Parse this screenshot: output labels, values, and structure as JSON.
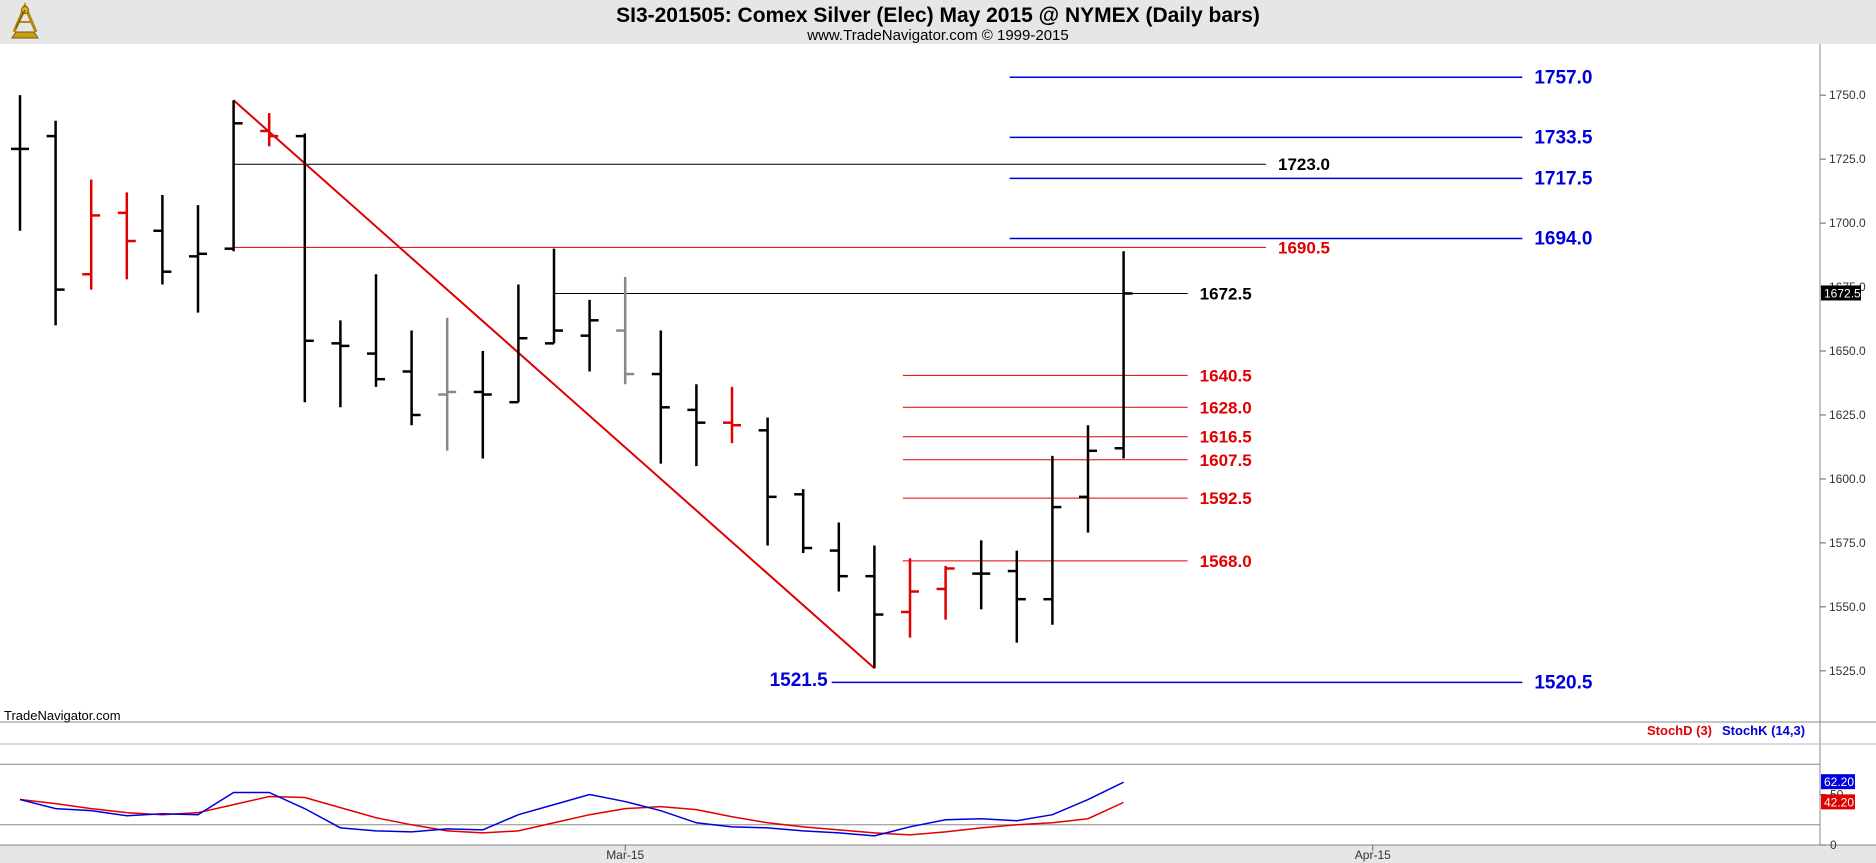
{
  "header": {
    "title": "SI3-201505:  Comex Silver (Elec) May 2015 @ NYMEX  (Daily bars)",
    "subtitle": "www.TradeNavigator.com © 1999-2015",
    "logo_icon": "sextant-logo-icon"
  },
  "watermark": "TradeNavigator.com",
  "chart_data": [
    {
      "type": "ohlc",
      "ylim": [
        1505,
        1770
      ],
      "y_ticks": [
        "1525.0",
        "1550.0",
        "1575.0",
        "1600.0",
        "1625.0",
        "1650.0",
        "1675.0",
        "1700.0",
        "1725.0",
        "1750.0"
      ],
      "x_ticks": [
        {
          "label": "Mar-15",
          "bar": 17
        },
        {
          "label": "Apr-15",
          "bar": 38
        }
      ],
      "last_price": "1672.5",
      "bars": [
        {
          "o": 1729,
          "h": 1750,
          "l": 1697,
          "c": 1729,
          "color": "black"
        },
        {
          "o": 1734,
          "h": 1740,
          "l": 1660,
          "c": 1674,
          "color": "black"
        },
        {
          "o": 1680,
          "h": 1717,
          "l": 1674,
          "c": 1703,
          "color": "red"
        },
        {
          "o": 1704,
          "h": 1712,
          "l": 1678,
          "c": 1693,
          "color": "red"
        },
        {
          "o": 1697,
          "h": 1711,
          "l": 1676,
          "c": 1681,
          "color": "black"
        },
        {
          "o": 1687,
          "h": 1707,
          "l": 1665,
          "c": 1688,
          "color": "black"
        },
        {
          "o": 1690,
          "h": 1748,
          "l": 1689,
          "c": 1739,
          "color": "black"
        },
        {
          "o": 1736,
          "h": 1743,
          "l": 1730,
          "c": 1734,
          "color": "red"
        },
        {
          "o": 1734,
          "h": 1735,
          "l": 1630,
          "c": 1654,
          "color": "black"
        },
        {
          "o": 1653,
          "h": 1662,
          "l": 1628,
          "c": 1652,
          "color": "black"
        },
        {
          "o": 1649,
          "h": 1680,
          "l": 1636,
          "c": 1639,
          "color": "black"
        },
        {
          "o": 1642,
          "h": 1658,
          "l": 1621,
          "c": 1625,
          "color": "black"
        },
        {
          "o": 1633,
          "h": 1663,
          "l": 1611,
          "c": 1634,
          "color": "gray"
        },
        {
          "o": 1634,
          "h": 1650,
          "l": 1608,
          "c": 1633,
          "color": "black"
        },
        {
          "o": 1630,
          "h": 1676,
          "l": 1630,
          "c": 1655,
          "color": "black"
        },
        {
          "o": 1653,
          "h": 1690,
          "l": 1653,
          "c": 1658,
          "color": "black"
        },
        {
          "o": 1656,
          "h": 1670,
          "l": 1642,
          "c": 1662,
          "color": "black"
        },
        {
          "o": 1658,
          "h": 1679,
          "l": 1637,
          "c": 1641,
          "color": "gray"
        },
        {
          "o": 1641,
          "h": 1658,
          "l": 1606,
          "c": 1628,
          "color": "black"
        },
        {
          "o": 1627,
          "h": 1637,
          "l": 1605,
          "c": 1622,
          "color": "black"
        },
        {
          "o": 1622,
          "h": 1636,
          "l": 1614,
          "c": 1621,
          "color": "red"
        },
        {
          "o": 1619,
          "h": 1624,
          "l": 1574,
          "c": 1593,
          "color": "black"
        },
        {
          "o": 1594,
          "h": 1596,
          "l": 1571,
          "c": 1573,
          "color": "black"
        },
        {
          "o": 1572,
          "h": 1583,
          "l": 1556,
          "c": 1562,
          "color": "black"
        },
        {
          "o": 1562,
          "h": 1574,
          "l": 1526,
          "c": 1547,
          "color": "black"
        },
        {
          "o": 1548,
          "h": 1569,
          "l": 1538,
          "c": 1556,
          "color": "red"
        },
        {
          "o": 1557,
          "h": 1566,
          "l": 1545,
          "c": 1565,
          "color": "red"
        },
        {
          "o": 1563,
          "h": 1576,
          "l": 1549,
          "c": 1563,
          "color": "black"
        },
        {
          "o": 1564,
          "h": 1572,
          "l": 1536,
          "c": 1553,
          "color": "black"
        },
        {
          "o": 1553,
          "h": 1609,
          "l": 1543,
          "c": 1589,
          "color": "black"
        },
        {
          "o": 1593,
          "h": 1621,
          "l": 1579,
          "c": 1611,
          "color": "black"
        },
        {
          "o": 1612,
          "h": 1689,
          "l": 1608,
          "c": 1672.5,
          "color": "black"
        }
      ],
      "trendline": {
        "from": {
          "bar": 6,
          "y": 1748
        },
        "to": {
          "bar": 24,
          "y": 1526
        },
        "color": "#e00000"
      },
      "levels": [
        {
          "value": 1757.0,
          "label": "1757.0",
          "color": "#0000dd",
          "from_bar": 27.8,
          "to_bar": 42.2,
          "size": "big"
        },
        {
          "value": 1733.5,
          "label": "1733.5",
          "color": "#0000dd",
          "from_bar": 27.8,
          "to_bar": 42.2,
          "size": "big"
        },
        {
          "value": 1723.0,
          "label": "1723.0",
          "color": "#000000",
          "from_bar": 6.0,
          "to_bar": 35.0,
          "size": "mid"
        },
        {
          "value": 1717.5,
          "label": "1717.5",
          "color": "#0000dd",
          "from_bar": 27.8,
          "to_bar": 42.2,
          "size": "big"
        },
        {
          "value": 1694.0,
          "label": "1694.0",
          "color": "#0000dd",
          "from_bar": 27.8,
          "to_bar": 42.2,
          "size": "big"
        },
        {
          "value": 1690.5,
          "label": "1690.5",
          "color": "#e00000",
          "from_bar": 6.0,
          "to_bar": 35.0,
          "size": "mid"
        },
        {
          "value": 1672.5,
          "label": "1672.5",
          "color": "#000000",
          "from_bar": 15.0,
          "to_bar": 32.8,
          "size": "mid"
        },
        {
          "value": 1640.5,
          "label": "1640.5",
          "color": "#e00000",
          "from_bar": 24.8,
          "to_bar": 32.8,
          "size": "mid"
        },
        {
          "value": 1628.0,
          "label": "1628.0",
          "color": "#e00000",
          "from_bar": 24.8,
          "to_bar": 32.8,
          "size": "mid"
        },
        {
          "value": 1616.5,
          "label": "1616.5",
          "color": "#e00000",
          "from_bar": 24.8,
          "to_bar": 32.8,
          "size": "mid"
        },
        {
          "value": 1607.5,
          "label": "1607.5",
          "color": "#e00000",
          "from_bar": 24.8,
          "to_bar": 32.8,
          "size": "mid"
        },
        {
          "value": 1592.5,
          "label": "1592.5",
          "color": "#e00000",
          "from_bar": 24.8,
          "to_bar": 32.8,
          "size": "mid"
        },
        {
          "value": 1568.0,
          "label": "1568.0",
          "color": "#e00000",
          "from_bar": 24.8,
          "to_bar": 32.8,
          "size": "mid"
        },
        {
          "value": 1520.5,
          "label": "1520.5",
          "color": "#0000dd",
          "from_bar": 22.8,
          "to_bar": 42.2,
          "size": "big"
        }
      ],
      "extra_labels": [
        {
          "label": "1521.5",
          "value": 1521.5,
          "bar": 21.0,
          "color": "#0000dd",
          "size": "big"
        }
      ]
    },
    {
      "type": "line",
      "indicator": "stochastic",
      "ylim": [
        0,
        100
      ],
      "y_ticks": [
        "0",
        "50"
      ],
      "reference_lines": [
        20,
        80
      ],
      "legend": [
        "StochD (3)",
        "StochK (14,3)"
      ],
      "series": [
        {
          "name": "StochD (3)",
          "color": "#e00000",
          "last": "42.20",
          "values": [
            45,
            41,
            36,
            32,
            30,
            32,
            40,
            48,
            47,
            37,
            27,
            20,
            14,
            12,
            14,
            22,
            30,
            36,
            38,
            35,
            28,
            22,
            18,
            15,
            12,
            10,
            13,
            17,
            20,
            22,
            26,
            42.2
          ]
        },
        {
          "name": "StochK (14,3)",
          "color": "#0000dd",
          "last": "62.20",
          "values": [
            45,
            36,
            34,
            29,
            31,
            30,
            52,
            52,
            36,
            17,
            14,
            13,
            16,
            15,
            30,
            40,
            50,
            43,
            34,
            22,
            18,
            17,
            14,
            12,
            9,
            18,
            25,
            26,
            24,
            30,
            45,
            62.2
          ]
        }
      ]
    }
  ]
}
